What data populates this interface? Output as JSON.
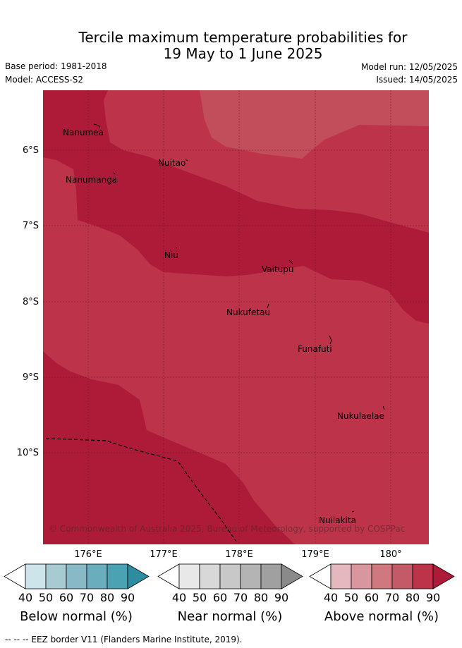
{
  "header": {
    "title_line1": "Tercile maximum temperature probabilities for",
    "title_line2": "19 May to 1 June 2025",
    "base_period": "Base period: 1981-2018",
    "model": "Model: ACCESS-S2",
    "model_run": "Model run: 12/05/2025",
    "issued": "Issued: 14/05/2025"
  },
  "map": {
    "y_ticks": [
      "6°S",
      "7°S",
      "8°S",
      "9°S",
      "10°S"
    ],
    "x_ticks": [
      "176°E",
      "177°E",
      "178°E",
      "179°E",
      "180°"
    ],
    "islands": [
      "Nanumea",
      "Nuitao",
      "Nanumanga",
      "Niu",
      "Vaitupu",
      "Nukufetau",
      "Funafuti",
      "Nukulaelae",
      "Nuilakita"
    ],
    "copyright": "© Commonwealth of Australia 2025, Bureau of Meteorology, supported by COSPPac",
    "colors": {
      "above_80_90": "#bd3349",
      "above_90_plus": "#ae1b38",
      "above_70_80": "#c24e5b"
    }
  },
  "legend": {
    "below": {
      "title": "Below normal (%)",
      "ticks": [
        "40",
        "50",
        "60",
        "70",
        "80",
        "90"
      ],
      "colors": [
        "#ffffff",
        "#cde4ea",
        "#a8cbd2",
        "#88b9c6",
        "#6aaebd",
        "#4aa2b3",
        "#2e8ca0"
      ]
    },
    "near": {
      "title": "Near normal (%)",
      "ticks": [
        "40",
        "50",
        "60",
        "70",
        "80",
        "90"
      ],
      "colors": [
        "#ffffff",
        "#e8e8e8",
        "#d8d8d8",
        "#c8c8c8",
        "#b4b4b4",
        "#a0a0a0",
        "#8a8a8a"
      ]
    },
    "above": {
      "title": "Above normal (%)",
      "ticks": [
        "40",
        "50",
        "60",
        "70",
        "80",
        "90"
      ],
      "colors": [
        "#ffffff",
        "#e4b8be",
        "#d8969e",
        "#cf7880",
        "#c45a68",
        "#bd3349",
        "#ae1b38"
      ]
    }
  },
  "footnote": "--  --  -- EEZ border V11 (Flanders Marine Institute, 2019)."
}
